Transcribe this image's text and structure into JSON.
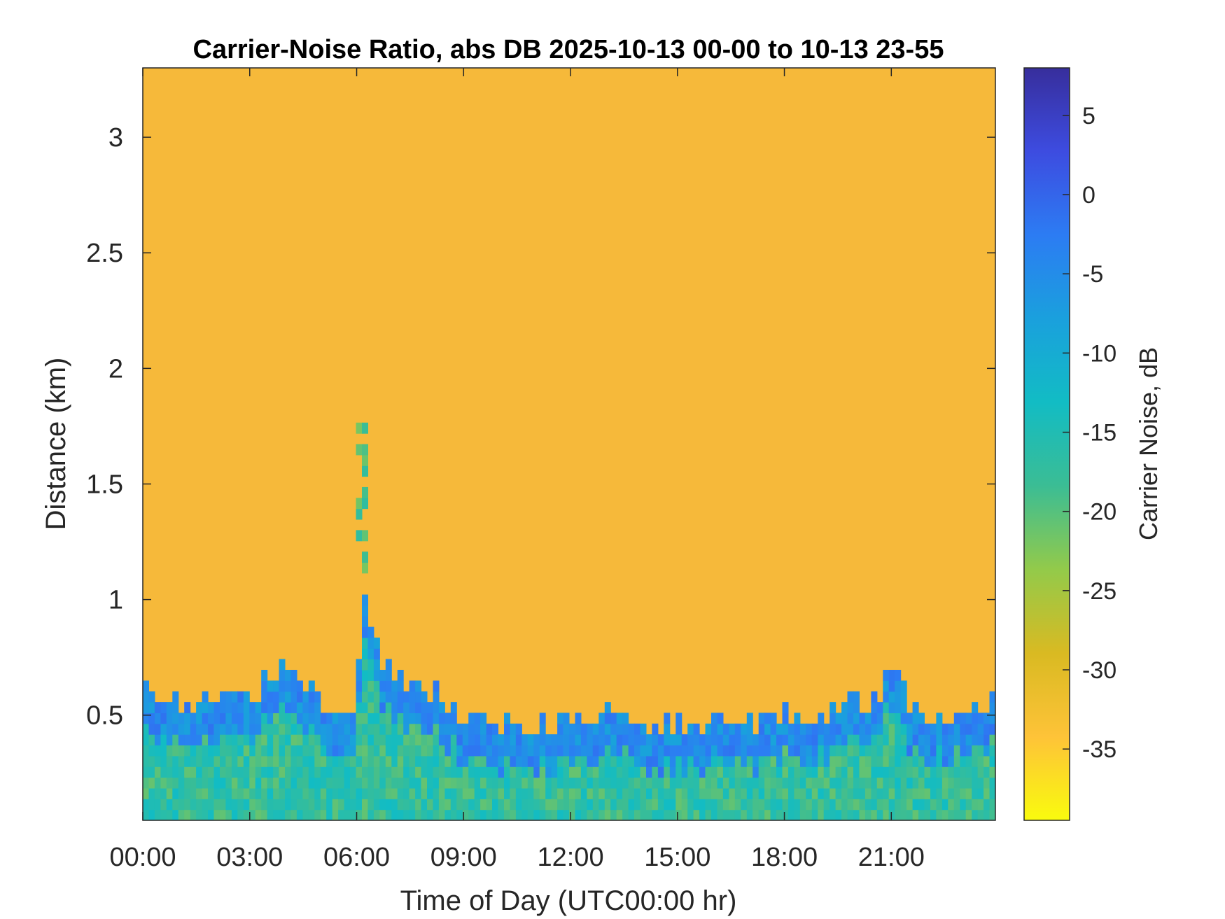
{
  "chart_data": {
    "type": "heatmap",
    "title": "Carrier-Noise Ratio, abs DB 2025-10-13 00-00 to 10-13 23-55",
    "xlabel": "Time of Day (UTC00:00 hr)",
    "ylabel": "Distance (km)",
    "colorbar_label": "Carrier Noise, dB",
    "xlim_hours": [
      0,
      23.92
    ],
    "ylim_km": [
      0.045,
      3.3
    ],
    "clim_db": [
      -39.5,
      8
    ],
    "x_ticks": [
      {
        "hour": 0,
        "label": "00:00"
      },
      {
        "hour": 3,
        "label": "03:00"
      },
      {
        "hour": 6,
        "label": "06:00"
      },
      {
        "hour": 9,
        "label": "09:00"
      },
      {
        "hour": 12,
        "label": "12:00"
      },
      {
        "hour": 15,
        "label": "15:00"
      },
      {
        "hour": 18,
        "label": "18:00"
      },
      {
        "hour": 21,
        "label": "21:00"
      }
    ],
    "y_ticks": [
      {
        "km": 0.5,
        "label": "0.5"
      },
      {
        "km": 1,
        "label": "1"
      },
      {
        "km": 1.5,
        "label": "1.5"
      },
      {
        "km": 2,
        "label": "2"
      },
      {
        "km": 2.5,
        "label": "2.5"
      },
      {
        "km": 3,
        "label": "3"
      }
    ],
    "colorbar_ticks": [
      {
        "db": 5,
        "label": "5"
      },
      {
        "db": 0,
        "label": "0"
      },
      {
        "db": -5,
        "label": "-5"
      },
      {
        "db": -10,
        "label": "-10"
      },
      {
        "db": -15,
        "label": "-15"
      },
      {
        "db": -20,
        "label": "-20"
      },
      {
        "db": -25,
        "label": "-25"
      },
      {
        "db": -30,
        "label": "-30"
      },
      {
        "db": -35,
        "label": "-35"
      }
    ],
    "colormap": "parula",
    "colormap_stops": [
      "#f9fb0e",
      "#fec338",
      "#d9ba22",
      "#93ca4a",
      "#3bbd94",
      "#12bcc4",
      "#1aa0dd",
      "#2c7cf3",
      "#3d4ce0",
      "#372e9c"
    ],
    "background_level_db": -33,
    "boundary_layer_top_km": [
      {
        "hour": 0,
        "km": 0.62
      },
      {
        "hour": 1,
        "km": 0.58
      },
      {
        "hour": 2,
        "km": 0.55
      },
      {
        "hour": 3,
        "km": 0.6
      },
      {
        "hour": 3.8,
        "km": 0.72
      },
      {
        "hour": 4.5,
        "km": 0.62
      },
      {
        "hour": 5.5,
        "km": 0.5
      },
      {
        "hour": 6,
        "km": 0.55
      },
      {
        "hour": 6.2,
        "km": 1.1
      },
      {
        "hour": 6.6,
        "km": 0.75
      },
      {
        "hour": 7.5,
        "km": 0.62
      },
      {
        "hour": 9,
        "km": 0.52
      },
      {
        "hour": 11,
        "km": 0.45
      },
      {
        "hour": 13,
        "km": 0.5
      },
      {
        "hour": 15,
        "km": 0.47
      },
      {
        "hour": 17,
        "km": 0.46
      },
      {
        "hour": 19,
        "km": 0.5
      },
      {
        "hour": 20.5,
        "km": 0.6
      },
      {
        "hour": 21,
        "km": 0.7
      },
      {
        "hour": 21.6,
        "km": 0.5
      },
      {
        "hour": 23.9,
        "km": 0.55
      }
    ]
  }
}
